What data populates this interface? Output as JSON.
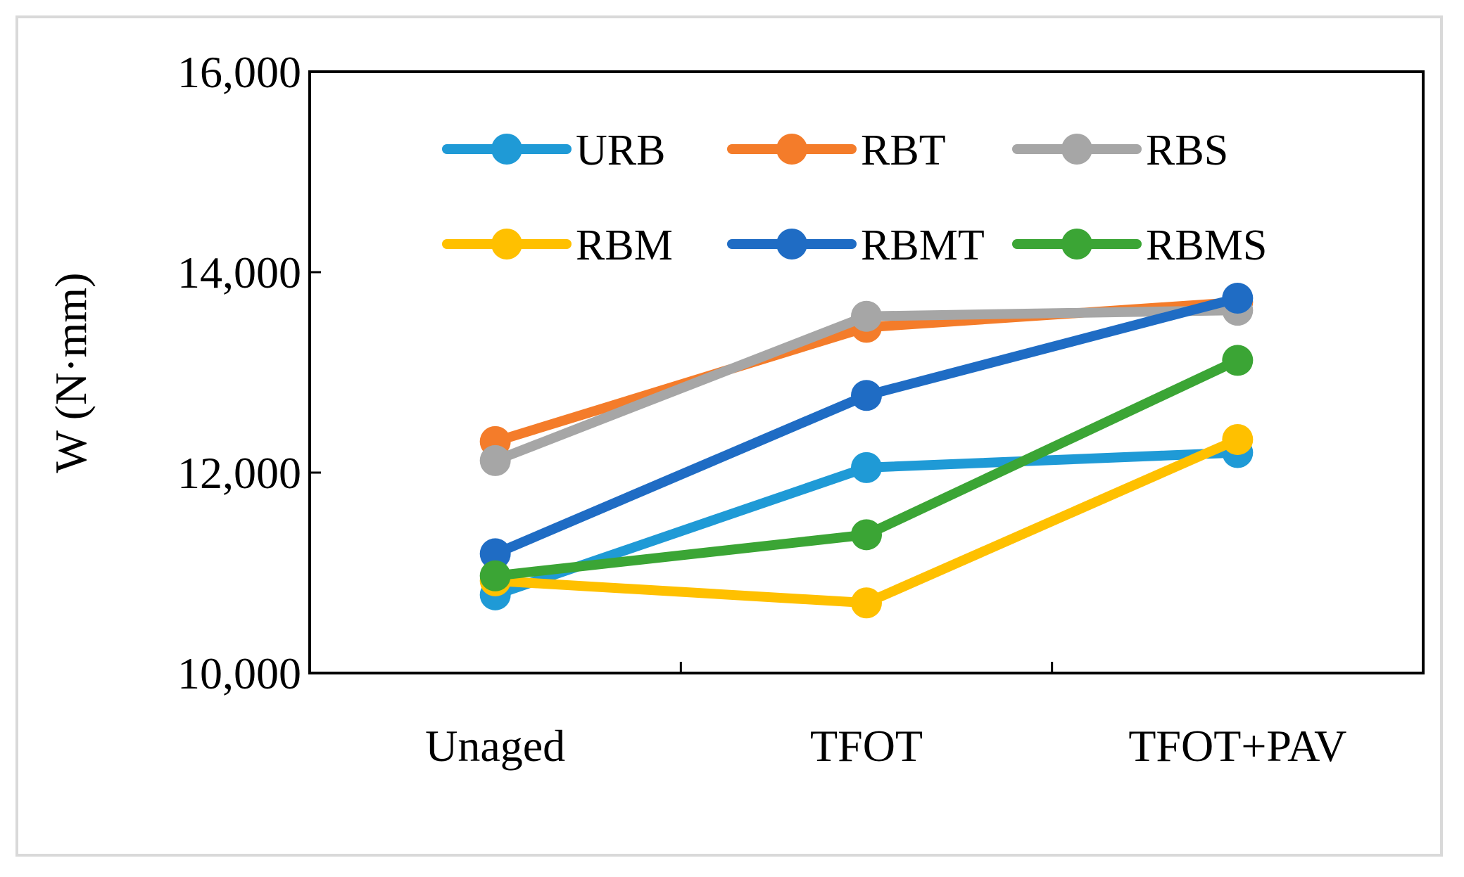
{
  "chart_data": {
    "type": "line",
    "title": "",
    "xlabel": "",
    "ylabel": "W (N·mm)",
    "categories": [
      "Unaged",
      "TFOT",
      "TFOT+PAV"
    ],
    "ylim": [
      10000,
      16000
    ],
    "yticks": [
      10000,
      12000,
      14000,
      16000
    ],
    "ytick_labels": [
      "10,000",
      "12,000",
      "14,000",
      "16,000"
    ],
    "grid": false,
    "legend_position": "top-inside",
    "series": [
      {
        "name": "URB",
        "color": "#1f9ad6",
        "values": [
          10780,
          12050,
          12200
        ]
      },
      {
        "name": "RBT",
        "color": "#f47c2a",
        "values": [
          12310,
          13450,
          13700
        ]
      },
      {
        "name": "RBS",
        "color": "#a6a6a6",
        "values": [
          12120,
          13560,
          13620
        ]
      },
      {
        "name": "RBM",
        "color": "#ffc000",
        "values": [
          10920,
          10700,
          12330
        ]
      },
      {
        "name": "RBMT",
        "color": "#1f6cc4",
        "values": [
          11190,
          12770,
          13740
        ]
      },
      {
        "name": "RBMS",
        "color": "#3ba535",
        "values": [
          10970,
          11380,
          13120
        ]
      }
    ]
  }
}
